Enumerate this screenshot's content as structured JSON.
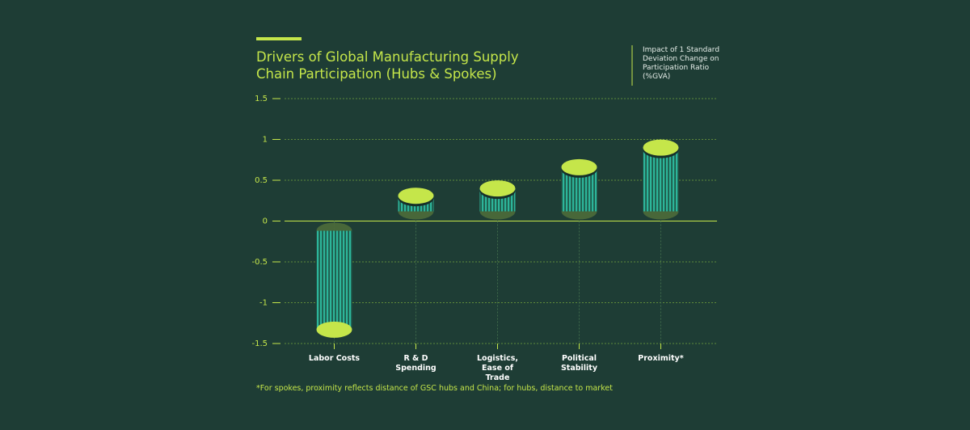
{
  "chart_data": {
    "type": "bar",
    "title": "Drivers of Global Manufacturing Supply Chain Participation (Hubs & Spokes)",
    "legend_note": "Impact of 1 Standard Deviation Change on Participation Ratio (%GVA)",
    "footnote": "*For spokes, proximity reflects distance of GSC hubs and China; for hubs, distance to market",
    "categories": [
      "Labor Costs",
      "R & D Spending",
      "Logistics, Ease of Trade",
      "Political Stability",
      "Proximity*"
    ],
    "values": [
      -1.33,
      0.31,
      0.4,
      0.66,
      0.9
    ],
    "color": "#2db59a",
    "ylim": [
      -1.5,
      1.5
    ],
    "yticks": [
      1.5,
      1,
      0.5,
      0,
      -0.5,
      -1,
      -1.5
    ],
    "grid": true
  }
}
